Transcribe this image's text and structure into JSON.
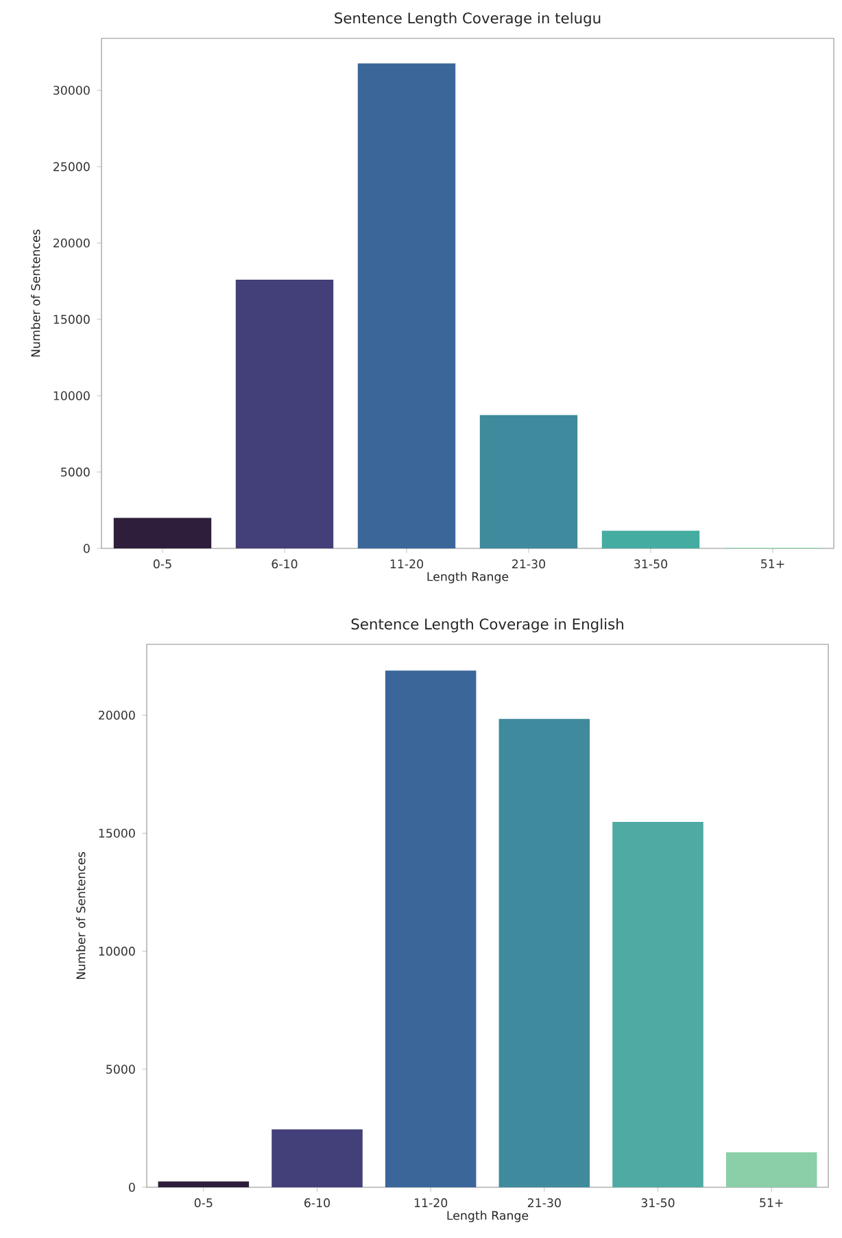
{
  "chart_data": [
    {
      "type": "bar",
      "title": "Sentence Length Coverage in telugu",
      "xlabel": "Length Range",
      "ylabel": "Number of Sentences",
      "categories": [
        "0-5",
        "6-10",
        "11-20",
        "21-30",
        "31-50",
        "51+"
      ],
      "values": [
        2000,
        17600,
        31760,
        8730,
        1160,
        50
      ],
      "colors": [
        "#2e1e3b",
        "#433f78",
        "#3a669a",
        "#3f8a9c",
        "#44aca0",
        "#8ad9b1"
      ],
      "ylim": [
        0,
        33400
      ],
      "yticks": [
        0,
        5000,
        10000,
        15000,
        20000,
        25000,
        30000
      ]
    },
    {
      "type": "bar",
      "title": "Sentence Length Coverage in English",
      "xlabel": "Length Range",
      "ylabel": "Number of Sentences",
      "categories": [
        "0-5",
        "6-10",
        "11-20",
        "21-30",
        "31-50",
        "51+"
      ],
      "values": [
        250,
        2450,
        21890,
        19840,
        15480,
        1480
      ],
      "colors": [
        "#2e1e3b",
        "#433f78",
        "#3a669a",
        "#3f8a9c",
        "#4eaaa2",
        "#8acfa8"
      ],
      "ylim": [
        0,
        23000
      ],
      "yticks": [
        0,
        5000,
        10000,
        15000,
        20000
      ]
    }
  ]
}
